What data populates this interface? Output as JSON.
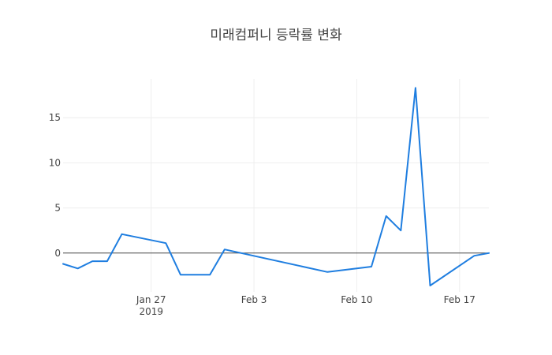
{
  "chart_data": {
    "type": "line",
    "title": "미래컴퍼니 등락률 변화",
    "xlabel": "",
    "ylabel": "",
    "x_tick_labels": [
      "Jan 27",
      "Feb 3",
      "Feb 10",
      "Feb 17"
    ],
    "x_tick_dates": [
      "2019-01-27",
      "2019-02-03",
      "2019-02-10",
      "2019-02-17"
    ],
    "x_year_label": "2019",
    "y_ticks": [
      0,
      5,
      10,
      15
    ],
    "ylim": [
      -4.3,
      19.3
    ],
    "xlim": [
      "2019-01-21",
      "2019-02-19"
    ],
    "grid": true,
    "series": [
      {
        "color": "#1f7ee0",
        "x": [
          "2019-01-21",
          "2019-01-22",
          "2019-01-23",
          "2019-01-24",
          "2019-01-25",
          "2019-01-28",
          "2019-01-29",
          "2019-01-31",
          "2019-02-01",
          "2019-02-08",
          "2019-02-11",
          "2019-02-12",
          "2019-02-13",
          "2019-02-14",
          "2019-02-15",
          "2019-02-18",
          "2019-02-19"
        ],
        "values": [
          -1.2,
          -1.7,
          -0.9,
          -0.9,
          2.1,
          1.1,
          -2.4,
          -2.4,
          0.4,
          -2.1,
          -1.5,
          4.1,
          2.5,
          18.3,
          -3.6,
          -0.3,
          0.0
        ]
      }
    ]
  }
}
